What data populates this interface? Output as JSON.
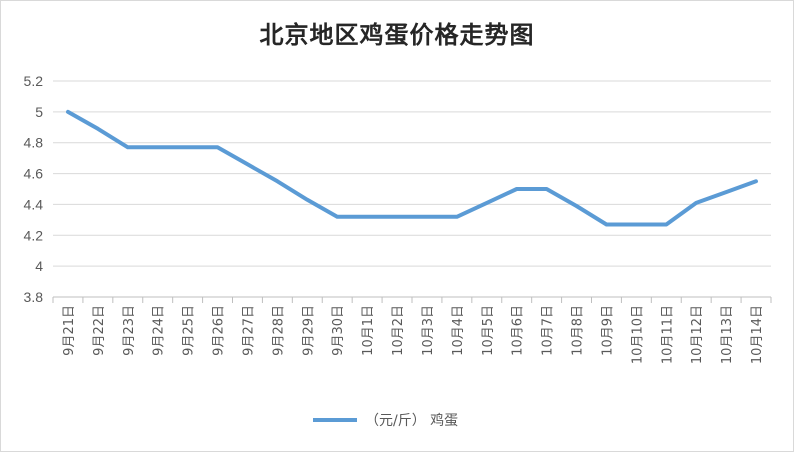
{
  "chart_data": {
    "type": "line",
    "title": "北京地区鸡蛋价格走势图",
    "xlabel": "",
    "ylabel": "",
    "ylim": [
      3.8,
      5.2
    ],
    "yticks": [
      "5.2",
      "5",
      "4.8",
      "4.6",
      "4.4",
      "4.2",
      "4",
      "3.8"
    ],
    "yticks_values": [
      5.2,
      5.0,
      4.8,
      4.6,
      4.4,
      4.2,
      4.0,
      3.8
    ],
    "categories": [
      "9月21日",
      "9月22日",
      "9月23日",
      "9月24日",
      "9月25日",
      "9月26日",
      "9月27日",
      "9月28日",
      "9月29日",
      "9月30日",
      "10月1日",
      "10月2日",
      "10月3日",
      "10月4日",
      "10月5日",
      "10月6日",
      "10月7日",
      "10月8日",
      "10月9日",
      "10月10日",
      "10月11日",
      "10月12日",
      "10月13日",
      "10月14日"
    ],
    "series": [
      {
        "name": "（元/斤） 鸡蛋",
        "color": "#5b9bd5",
        "values": [
          5.0,
          4.89,
          4.77,
          4.77,
          4.77,
          4.77,
          4.66,
          4.55,
          4.43,
          4.32,
          4.32,
          4.32,
          4.32,
          4.32,
          4.41,
          4.5,
          4.5,
          4.39,
          4.27,
          4.27,
          4.27,
          4.41,
          4.48,
          4.55
        ]
      }
    ],
    "grid": "horizontal",
    "legend_position": "bottom"
  }
}
